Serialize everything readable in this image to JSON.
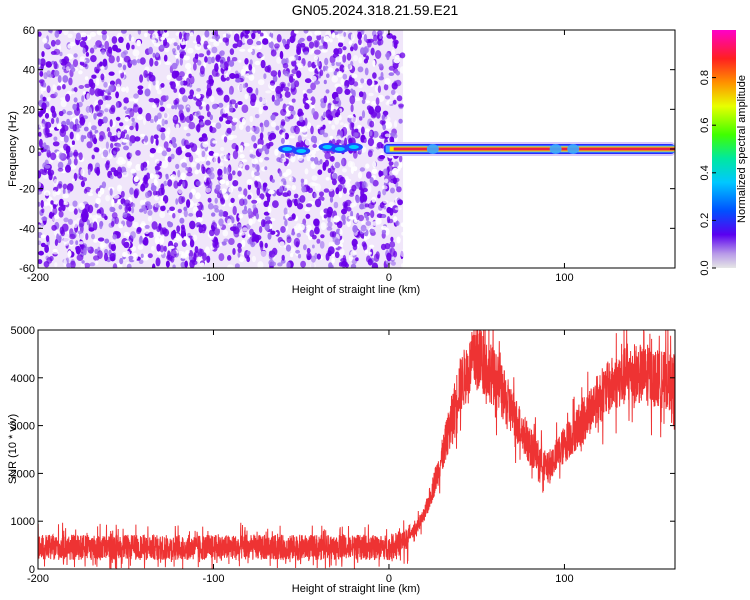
{
  "title": "GN05.2024.318.21.59.E21",
  "chart_data": [
    {
      "type": "heatmap",
      "xlabel": "Height of straight line (km)",
      "ylabel": "Frequency (Hz)",
      "xlim": [
        -200,
        163
      ],
      "ylim": [
        -60,
        60
      ],
      "xticks": [
        -200,
        -100,
        0,
        100
      ],
      "yticks": [
        -60,
        -40,
        -20,
        0,
        20,
        40,
        60
      ],
      "colorbar": {
        "label": "Normalized spectral amplitude",
        "range": [
          0,
          1
        ],
        "ticks": [
          "0.0",
          "0.2",
          "0.4",
          "0.6",
          "0.8"
        ]
      },
      "noise_region_x": [
        -200,
        8
      ],
      "signal_band": {
        "x": [
          -3,
          163
        ],
        "frequency_hz": 0,
        "peak_amplitude": 0.9
      },
      "colors": {
        "noise_dark": "#6a00e8",
        "noise_light": "#e3d2f6",
        "band_core": "#e4204a",
        "band_edge": "#3aa8ff"
      }
    },
    {
      "type": "line",
      "xlabel": "Height of straight line (km)",
      "ylabel": "SNR (10 * v/v)",
      "xlim": [
        -200,
        163
      ],
      "ylim": [
        0,
        5000
      ],
      "xticks": [
        -200,
        -100,
        0,
        100
      ],
      "yticks": [
        0,
        1000,
        2000,
        3000,
        4000,
        5000
      ],
      "line_color": "#ee3333",
      "envelope": {
        "x": [
          -200,
          -150,
          -100,
          -50,
          0,
          10,
          20,
          30,
          40,
          50,
          60,
          70,
          80,
          90,
          100,
          110,
          120,
          130,
          140,
          150,
          163
        ],
        "y": [
          450,
          450,
          450,
          450,
          450,
          600,
          1100,
          2300,
          3800,
          4500,
          4000,
          3300,
          2600,
          2100,
          2600,
          3100,
          3600,
          3950,
          4100,
          4000,
          3900
        ]
      }
    }
  ]
}
